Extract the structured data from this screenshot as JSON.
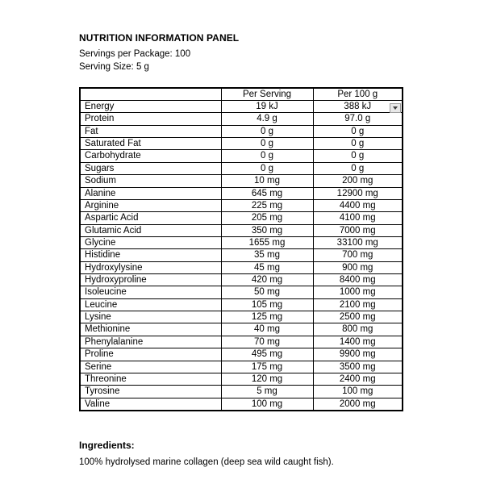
{
  "panel": {
    "title": "NUTRITION INFORMATION PANEL",
    "servings_per_package": "Servings per Package: 100",
    "serving_size": "Serving Size: 5 g"
  },
  "table": {
    "columns": [
      "",
      "Per Serving",
      "Per 100 g"
    ],
    "rows": [
      [
        "Energy",
        "19 kJ",
        "388 kJ"
      ],
      [
        "Protein",
        "4.9 g",
        "97.0 g"
      ],
      [
        "Fat",
        "0 g",
        "0 g"
      ],
      [
        "Saturated Fat",
        "0 g",
        "0 g"
      ],
      [
        "Carbohydrate",
        "0 g",
        "0 g"
      ],
      [
        "Sugars",
        "0 g",
        "0 g"
      ],
      [
        "Sodium",
        "10 mg",
        "200 mg"
      ],
      [
        "Alanine",
        "645 mg",
        "12900 mg"
      ],
      [
        "Arginine",
        "225 mg",
        "4400 mg"
      ],
      [
        "Aspartic Acid",
        "205 mg",
        "4100 mg"
      ],
      [
        "Glutamic Acid",
        "350 mg",
        "7000 mg"
      ],
      [
        "Glycine",
        "1655 mg",
        "33100 mg"
      ],
      [
        "Histidine",
        "35 mg",
        "700 mg"
      ],
      [
        "Hydroxylysine",
        "45 mg",
        "900 mg"
      ],
      [
        "Hydroxyproline",
        "420 mg",
        "8400 mg"
      ],
      [
        "Isoleucine",
        "50 mg",
        "1000 mg"
      ],
      [
        "Leucine",
        "105 mg",
        "2100 mg"
      ],
      [
        "Lysine",
        "125 mg",
        "2500 mg"
      ],
      [
        "Methionine",
        "40 mg",
        "800 mg"
      ],
      [
        "Phenylalanine",
        "70 mg",
        "1400 mg"
      ],
      [
        "Proline",
        "495 mg",
        "9900 mg"
      ],
      [
        "Serine",
        "175 mg",
        "3500 mg"
      ],
      [
        "Threonine",
        "120 mg",
        "2400 mg"
      ],
      [
        "Tyrosine",
        "5 mg",
        "100 mg"
      ],
      [
        "Valine",
        "100 mg",
        "2000 mg"
      ]
    ]
  },
  "dropdown": {
    "icon": "chevron-down"
  },
  "ingredients": {
    "heading": "Ingredients:",
    "text": "100% hydrolysed marine collagen (deep sea wild caught fish)."
  },
  "colors": {
    "background": "#ffffff",
    "text": "#000000",
    "table_border": "#000000",
    "dropdown_bg": "#e8e8e8",
    "dropdown_border": "#9a9a9a",
    "dropdown_arrow": "#3c3c3c"
  }
}
